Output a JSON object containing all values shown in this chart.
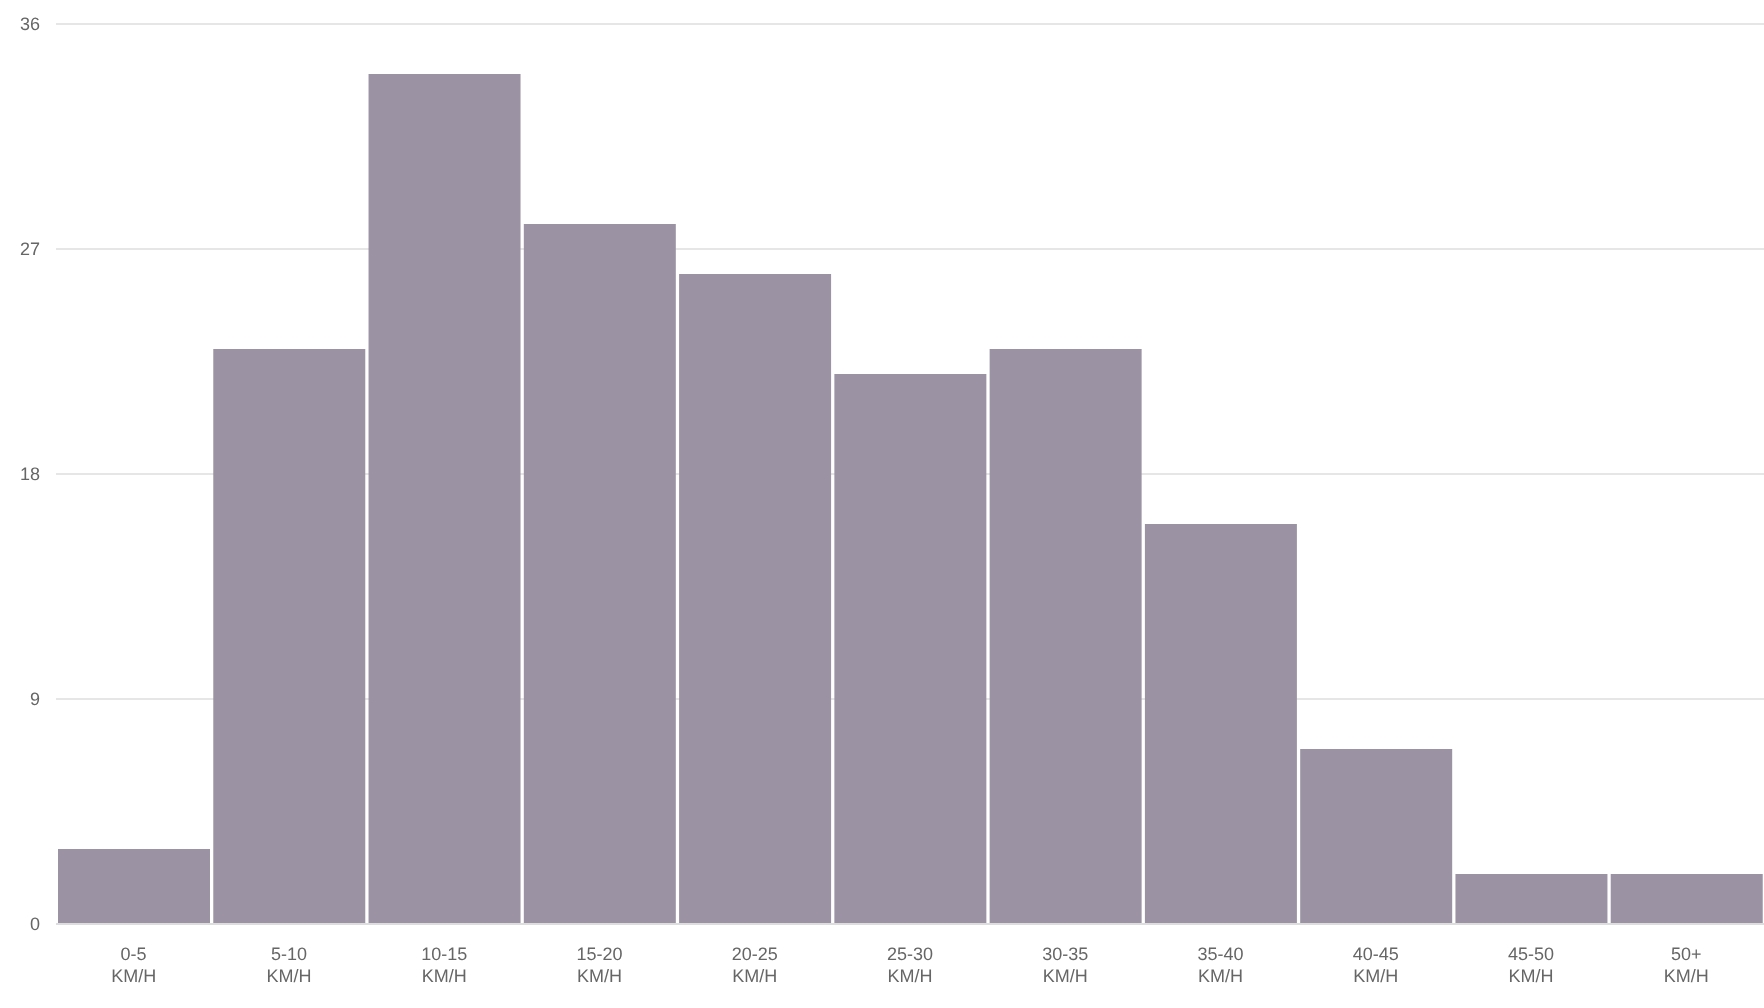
{
  "chart_data": {
    "type": "bar",
    "categories": [
      "0-5 KM/H",
      "5-10 KM/H",
      "10-15 KM/H",
      "15-20 KM/H",
      "20-25 KM/H",
      "25-30 KM/H",
      "30-35 KM/H",
      "35-40 KM/H",
      "40-45 KM/H",
      "45-50 KM/H",
      "50+ KM/H"
    ],
    "values": [
      3,
      23,
      34,
      28,
      26,
      22,
      23,
      16,
      7,
      2,
      2
    ],
    "color": "#9b93a3",
    "ylim": [
      0,
      36
    ],
    "yticks": [
      0,
      9,
      18,
      27,
      36
    ],
    "grid": "y"
  }
}
